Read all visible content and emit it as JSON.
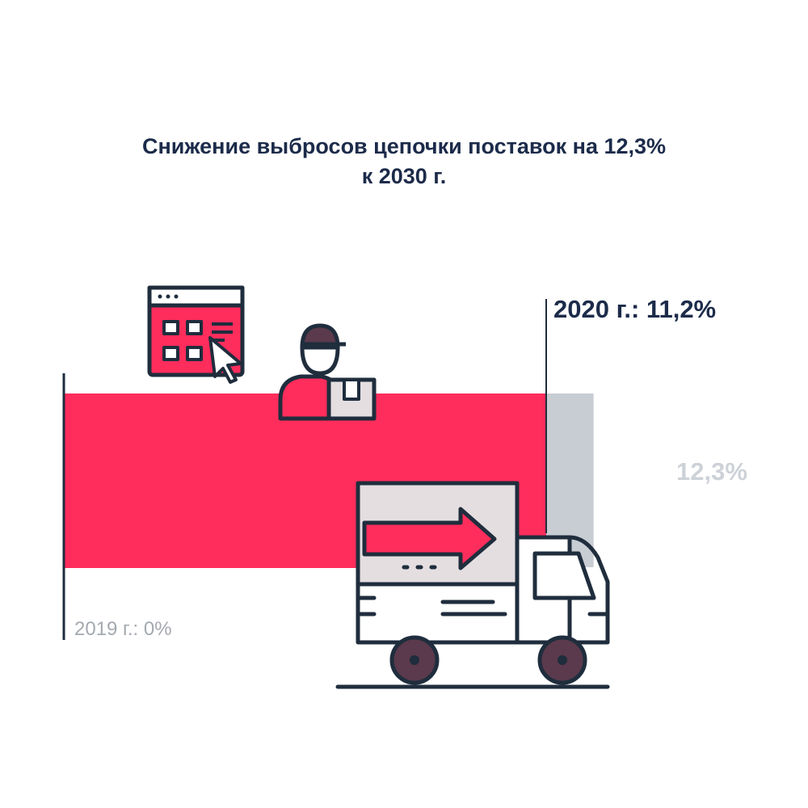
{
  "chart_data": {
    "type": "bar",
    "orientation": "horizontal",
    "title_lines": [
      "Снижение выбросов цепочки поставок на 12,3%",
      "к 2030 г."
    ],
    "baseline": {
      "year": "2019",
      "value": 0,
      "label": "2019 г.: 0%"
    },
    "progress": {
      "year": "2020",
      "value": 11.2,
      "label": "2020 г.: 11,2%"
    },
    "target": {
      "year": "2030",
      "value": 12.3,
      "label": "12,3%"
    },
    "xlim": [
      0,
      12.3
    ]
  },
  "colors": {
    "progress": "#ff2d5c",
    "target": "#c8ccd3",
    "outline": "#1f2d3d",
    "wheel": "#5a3a4c",
    "box": "#e4dee1"
  },
  "icons": [
    "browser-grid-icon",
    "courier-icon",
    "delivery-truck-icon"
  ]
}
